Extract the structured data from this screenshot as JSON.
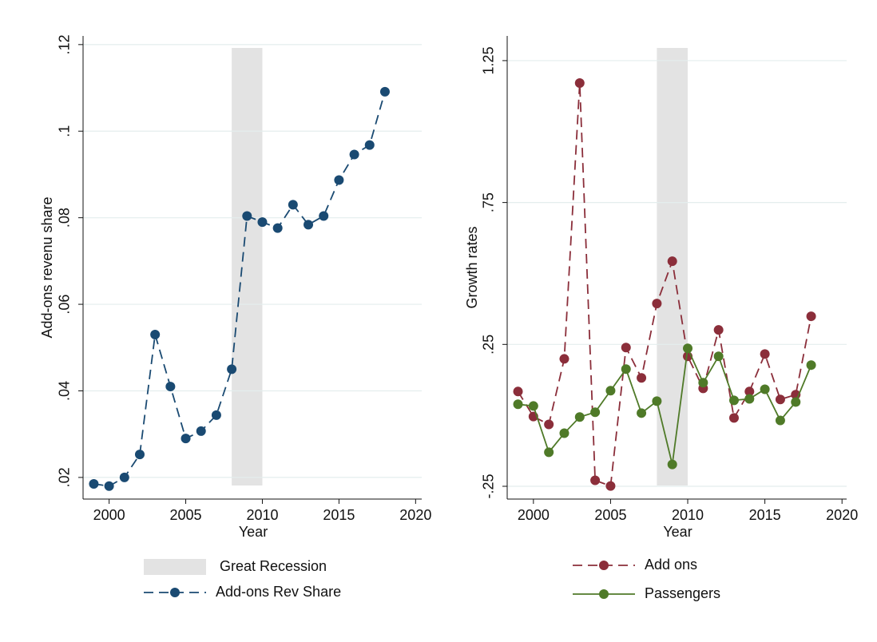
{
  "chart_data": [
    {
      "type": "line",
      "xlabel": "Year",
      "ylabel": "Add-ons revenu share",
      "x": [
        1999,
        2000,
        2001,
        2002,
        2003,
        2004,
        2005,
        2006,
        2007,
        2008,
        2009,
        2010,
        2011,
        2012,
        2013,
        2014,
        2015,
        2016,
        2017,
        2018
      ],
      "series": [
        {
          "name": "Add-ons Rev Share",
          "color": "#1a4a72",
          "line_style": "dashed",
          "values": [
            0.0185,
            0.018,
            0.02,
            0.0253,
            0.053,
            0.041,
            0.029,
            0.0307,
            0.0344,
            0.045,
            0.0804,
            0.079,
            0.0776,
            0.083,
            0.0784,
            0.0804,
            0.0887,
            0.0946,
            0.0968,
            0.1091
          ]
        }
      ],
      "shading": {
        "x": [
          2008,
          2010
        ],
        "label": "Great Recession",
        "color": "#e3e3e3"
      },
      "xlim": [
        1998.3,
        2020.4
      ],
      "ylim": [
        0.015,
        0.122
      ],
      "xticks": [
        2000,
        2005,
        2010,
        2015,
        2020
      ],
      "yticks": [
        {
          "value": 0.02,
          "label": ".02"
        },
        {
          "value": 0.04,
          "label": ".04"
        },
        {
          "value": 0.06,
          "label": ".06"
        },
        {
          "value": 0.08,
          "label": ".08"
        },
        {
          "value": 0.1,
          "label": ".1"
        },
        {
          "value": 0.12,
          "label": ".12"
        }
      ],
      "grid": true
    },
    {
      "type": "line",
      "xlabel": "Year",
      "ylabel": "Growth rates",
      "x": [
        1999,
        2000,
        2001,
        2002,
        2003,
        2004,
        2005,
        2006,
        2007,
        2008,
        2009,
        2010,
        2011,
        2012,
        2013,
        2014,
        2015,
        2016,
        2017,
        2018
      ],
      "series": [
        {
          "name": "Add ons",
          "color": "#8b2e3a",
          "line_style": "dashed",
          "values": [
            0.084,
            -0.004,
            -0.032,
            0.199,
            1.171,
            -0.229,
            -0.249,
            0.239,
            0.132,
            0.394,
            0.543,
            0.208,
            0.095,
            0.301,
            -0.009,
            0.084,
            0.216,
            0.056,
            0.073,
            0.349
          ]
        },
        {
          "name": "Passengers",
          "color": "#4f7a28",
          "line_style": "solid",
          "values": [
            0.039,
            0.033,
            -0.13,
            -0.063,
            -0.006,
            0.011,
            0.087,
            0.163,
            0.008,
            0.05,
            -0.173,
            0.236,
            0.115,
            0.208,
            0.053,
            0.058,
            0.092,
            -0.018,
            0.047,
            0.177
          ]
        }
      ],
      "shading": {
        "x": [
          2008,
          2010
        ],
        "color": "#e3e3e3"
      },
      "xlim": [
        1998.3,
        2020.3
      ],
      "ylim": [
        -0.295,
        1.337
      ],
      "xticks": [
        2000,
        2005,
        2010,
        2015,
        2020
      ],
      "yticks": [
        {
          "value": -0.25,
          "label": "-.25"
        },
        {
          "value": 0.25,
          "label": ".25"
        },
        {
          "value": 0.75,
          "label": ".75"
        },
        {
          "value": 1.25,
          "label": "1.25"
        }
      ],
      "grid": true
    }
  ]
}
